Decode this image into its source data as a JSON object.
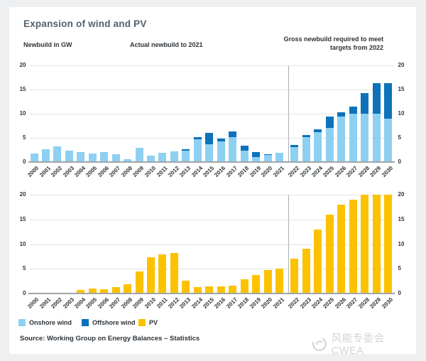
{
  "card": {
    "title": "Expansion of wind and PV"
  },
  "header": {
    "axis_unit": "Newbuild in GW",
    "actual_note": "Actual newbuild to 2021",
    "target_note": "Gross newbuild required to meet targets from 2022"
  },
  "legend": {
    "items": [
      {
        "label": "Onshore wind",
        "color": "#8ed0f2"
      },
      {
        "label": "Offshore wind",
        "color": "#0d72ba"
      },
      {
        "label": "PV",
        "color": "#fcc200"
      }
    ]
  },
  "source": {
    "text": "Source: Working Group on Energy Balances – Statistics"
  },
  "watermark": {
    "text": "风能专委会CWEA"
  },
  "colors": {
    "page_background": "#edeff1",
    "card_background": "#ffffff",
    "title_text": "#51626f",
    "body_text": "#2d3338",
    "gridline": "#c7cacc",
    "axis_line": "#a0a5a9",
    "divider_line": "#aaafb2",
    "watermark_text": "#d2d4d6"
  },
  "chart_data": [
    {
      "type": "bar",
      "stacked": true,
      "unit": "GW",
      "categories": [
        "2000",
        "2001",
        "2002",
        "2003",
        "2004",
        "2005",
        "2006",
        "2007",
        "2008",
        "2009",
        "2010",
        "2011",
        "2012",
        "2013",
        "2014",
        "2015",
        "2016",
        "2017",
        "2018",
        "2019",
        "2020",
        "2021",
        "2022",
        "2023",
        "2024",
        "2025",
        "2026",
        "2027",
        "2028",
        "2029",
        "2030"
      ],
      "series": [
        {
          "name": "Onshore wind",
          "color": "#8ed0f2",
          "values": [
            1.7,
            2.6,
            3.2,
            2.4,
            2.0,
            1.8,
            2.1,
            1.6,
            0.6,
            2.9,
            1.3,
            1.9,
            2.2,
            2.4,
            4.7,
            3.7,
            4.3,
            5.1,
            2.4,
            1.1,
            1.4,
            1.9,
            3.1,
            5.2,
            6.2,
            7.1,
            9.4,
            10.0,
            10.0,
            10.0,
            9.0
          ]
        },
        {
          "name": "Offshore wind",
          "color": "#0d72ba",
          "values": [
            0,
            0,
            0,
            0,
            0,
            0,
            0,
            0,
            0,
            0,
            0,
            0,
            0,
            0.2,
            0.5,
            2.3,
            0.6,
            1.3,
            1.0,
            0.9,
            0.2,
            0,
            0.5,
            0.4,
            0.6,
            2.3,
            0.9,
            1.4,
            4.3,
            6.3,
            7.3
          ]
        }
      ],
      "ylim": [
        0,
        20
      ],
      "yticks": [
        0,
        5,
        10,
        15,
        20
      ],
      "grid": "dotted",
      "legend_position": "bottom",
      "divider_after": "2021"
    },
    {
      "type": "bar",
      "stacked": false,
      "unit": "GW",
      "categories": [
        "2000",
        "2001",
        "2002",
        "2003",
        "2004",
        "2005",
        "2006",
        "2007",
        "2008",
        "2009",
        "2010",
        "2011",
        "2012",
        "2013",
        "2014",
        "2015",
        "2016",
        "2017",
        "2018",
        "2019",
        "2020",
        "2021",
        "2022",
        "2023",
        "2024",
        "2025",
        "2026",
        "2027",
        "2028",
        "2029",
        "2030"
      ],
      "series": [
        {
          "name": "PV",
          "color": "#fcc200",
          "values": [
            0.05,
            0.1,
            0.1,
            0.15,
            0.7,
            1.0,
            0.9,
            1.3,
            1.9,
            4.4,
            7.4,
            7.9,
            8.2,
            2.6,
            1.3,
            1.4,
            1.5,
            1.6,
            2.9,
            3.8,
            4.8,
            5.0,
            7.0,
            9.0,
            13.0,
            16.0,
            18.0,
            19.0,
            20.0,
            20.0,
            20.0
          ]
        }
      ],
      "ylim": [
        0,
        20
      ],
      "yticks": [
        0,
        5,
        10,
        15,
        20
      ],
      "grid": "dotted",
      "legend_position": "bottom",
      "divider_after": "2021"
    }
  ]
}
